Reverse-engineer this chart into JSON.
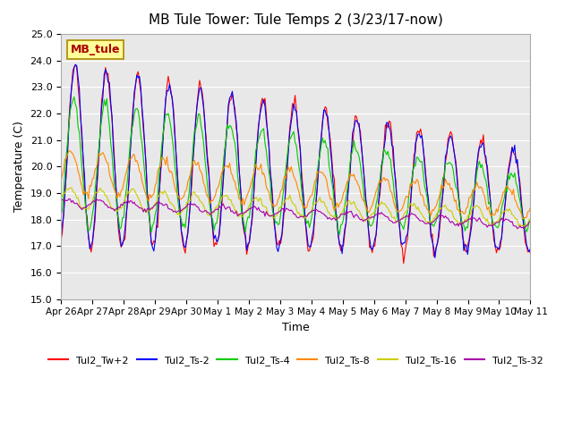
{
  "title": "MB Tule Tower: Tule Temps 2 (3/23/17-now)",
  "xlabel": "Time",
  "ylabel": "Temperature (C)",
  "ylim": [
    15.0,
    25.0
  ],
  "yticks": [
    15.0,
    16.0,
    17.0,
    18.0,
    19.0,
    20.0,
    21.0,
    22.0,
    23.0,
    24.0,
    25.0
  ],
  "bg_color": "#e8e8e8",
  "series_colors": {
    "Tul2_Tw+2": "#ff0000",
    "Tul2_Ts-2": "#0000ff",
    "Tul2_Ts-4": "#00cc00",
    "Tul2_Ts-8": "#ff8800",
    "Tul2_Ts-16": "#cccc00",
    "Tul2_Ts-32": "#aa00aa"
  },
  "xtick_labels": [
    "Apr 26",
    "Apr 27",
    "Apr 28",
    "Apr 29",
    "Apr 30",
    "May 1",
    "May 2",
    "May 3",
    "May 4",
    "May 5",
    "May 6",
    "May 7",
    "May 8",
    "May 9",
    "May 10",
    "May 11"
  ],
  "num_days": 15,
  "annotation_text": "MB_tule",
  "annotation_bg": "#ffff99",
  "annotation_border": "#aa8800"
}
